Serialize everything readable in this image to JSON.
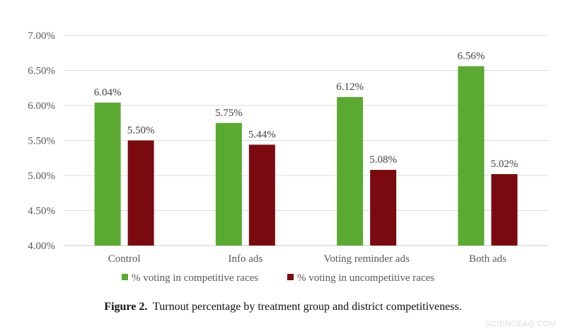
{
  "chart_data": {
    "type": "bar",
    "categories": [
      "Control",
      "Info ads",
      "Voting reminder ads",
      "Both ads"
    ],
    "series": [
      {
        "name": "% voting in competitive races",
        "color": "#5aaa32",
        "values": [
          6.04,
          5.75,
          6.12,
          6.56
        ],
        "labels": [
          "6.04%",
          "5.75%",
          "6.12%",
          "6.56%"
        ]
      },
      {
        "name": "% voting in uncompetitive races",
        "color": "#7b0a10",
        "values": [
          5.5,
          5.44,
          5.08,
          5.02
        ],
        "labels": [
          "5.50%",
          "5.44%",
          "5.08%",
          "5.02%"
        ]
      }
    ],
    "ylim": [
      4.0,
      7.0
    ],
    "yticks": [
      4.0,
      4.5,
      5.0,
      5.5,
      6.0,
      6.5,
      7.0
    ],
    "ytick_labels": [
      "4.00%",
      "4.50%",
      "5.00%",
      "5.50%",
      "6.00%",
      "6.50%",
      "7.00%"
    ],
    "grid": true,
    "legend_position": "bottom"
  },
  "caption": {
    "label": "Figure 2.",
    "text": "Turnout percentage by treatment group and district competitiveness."
  },
  "watermark": "SCIENCEAQ.COM"
}
